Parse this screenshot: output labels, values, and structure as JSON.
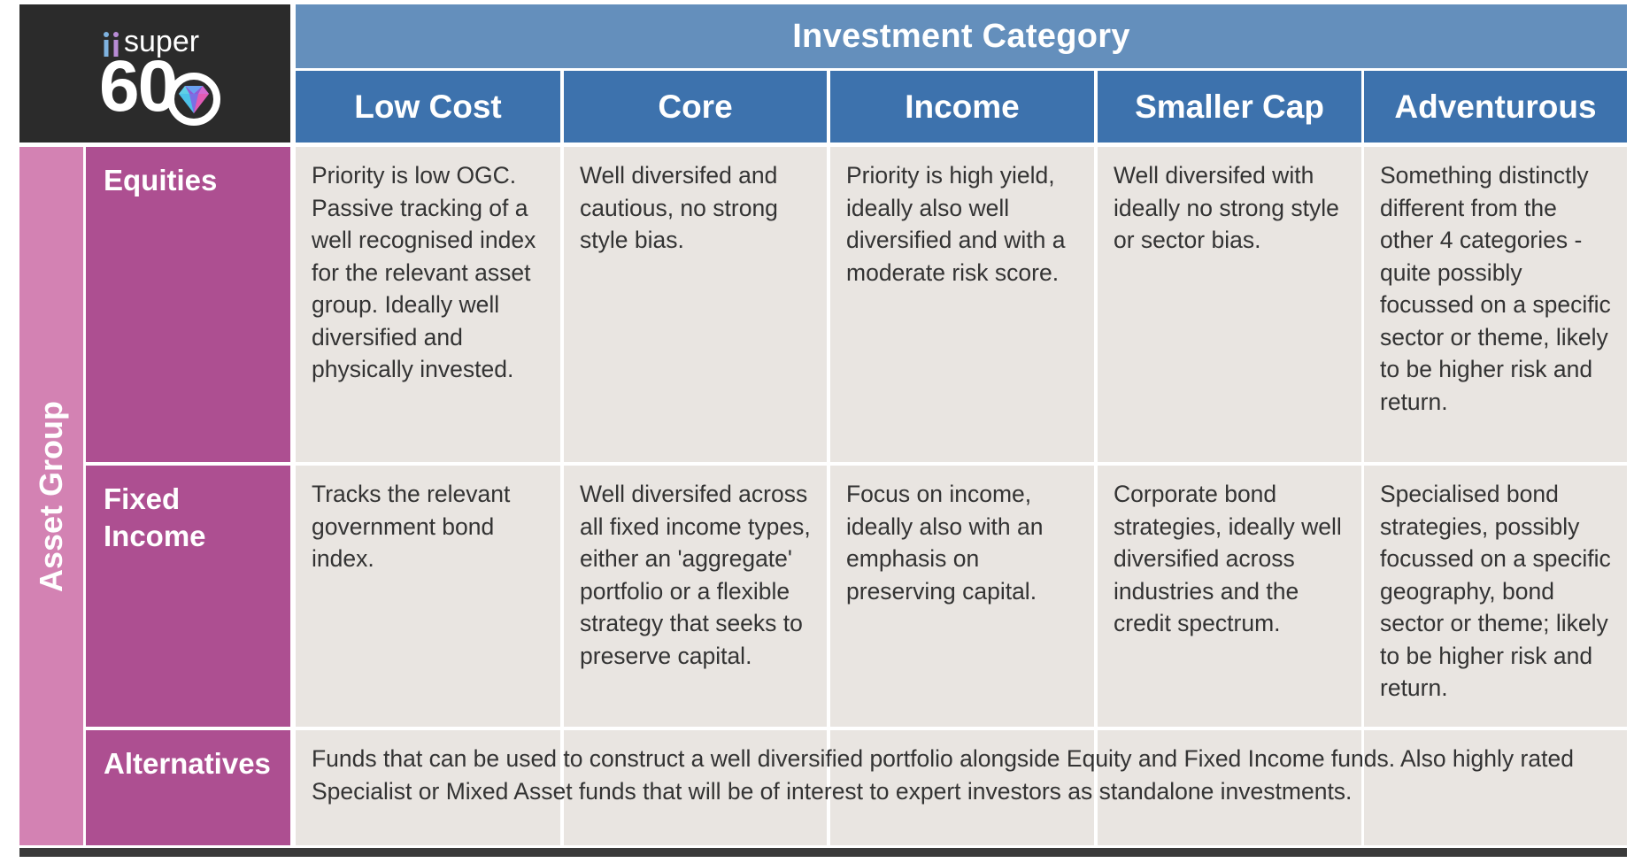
{
  "logo": {
    "prefix": "ii",
    "word": "super",
    "number": "60"
  },
  "header": {
    "title": "Investment Category"
  },
  "columns": [
    "Low Cost",
    "Core",
    "Income",
    "Smaller Cap",
    "Adventurous"
  ],
  "axis_label": "Asset Group",
  "rows": [
    {
      "label": "Equities",
      "cells": [
        "Priority is low OGC. Passive tracking of a well recognised index for the relevant asset group. Ideally well diversified and physically invested.",
        "Well diversifed and cautious, no strong style bias.",
        "Priority is high yield, ideally also well diversified and with a moderate risk score.",
        "Well diversifed with ideally no strong style or sector bias.",
        "Something distinctly different from the other 4 categories - quite possibly focussed on a specific sector or theme, likely to be higher risk and return."
      ]
    },
    {
      "label": "Fixed Income",
      "cells": [
        "Tracks the relevant government bond index.",
        "Well diversifed across all fixed income types, either an 'aggregate' portfolio or a flexible strategy that seeks to preserve capital.",
        "Focus on income, ideally also with an emphasis on preserving capital.",
        "Corporate bond strategies, ideally well diversified across industries and the credit spectrum.",
        "Specialised bond strategies, possibly focussed on a specific geography, bond sector or theme; likely to be higher risk and return."
      ]
    },
    {
      "label": "Alternatives",
      "text": "Funds that can be used to construct a well diversified portfolio alongside Equity and Fixed Income funds. Also highly rated Specialist or Mixed Asset funds that will be of interest to expert investors as standalone investments."
    }
  ],
  "colors": {
    "logo_bg": "#2b2b2b",
    "header_light": "#648fbc",
    "header_dark": "#3d72ad",
    "asset_group_bar": "#d382b3",
    "row_label_bg": "#ad4f91",
    "cell_bg": "#e9e5e1"
  }
}
